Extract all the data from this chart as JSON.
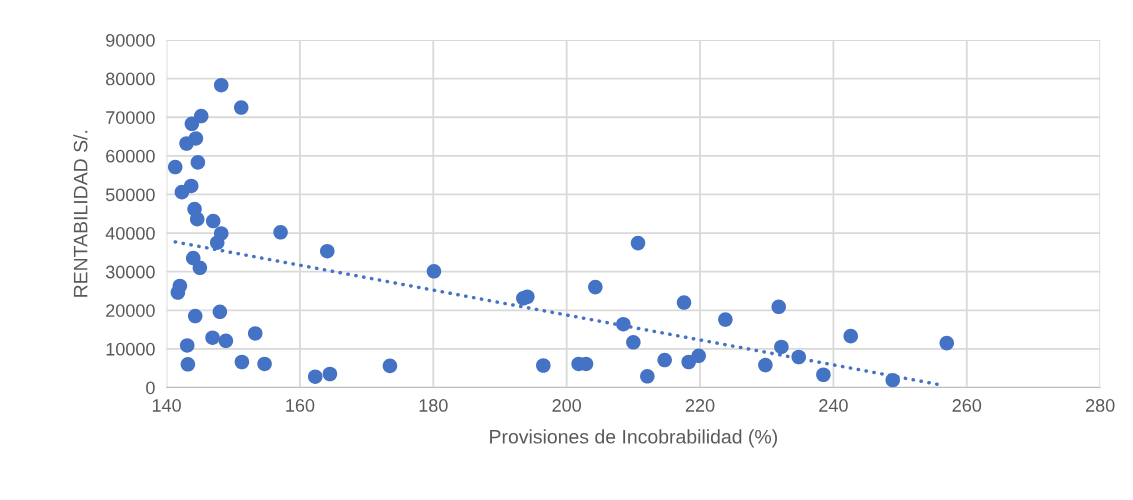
{
  "chart_data": {
    "type": "scatter",
    "xlabel": "Provisiones de Incobrabilidad (%)",
    "ylabel": "RENTABILIDAD S/.",
    "xlim": [
      140,
      280
    ],
    "xticks": [
      140,
      160,
      180,
      200,
      220,
      240,
      260,
      280
    ],
    "ylim": [
      0,
      90000
    ],
    "yticks": [
      0,
      10000,
      20000,
      30000,
      40000,
      50000,
      60000,
      70000,
      80000,
      90000
    ],
    "grid": true,
    "legend": false,
    "marker": "circle",
    "series": [
      {
        "color": "#4472c4",
        "x": [
          148.2,
          151.2,
          145.2,
          143.8,
          144.4,
          143.0,
          141.3,
          144.7,
          143.7,
          142.3,
          144.2,
          144.6,
          147.0,
          148.2,
          147.6,
          157.1,
          144.0,
          145.0,
          142.0,
          141.7,
          144.3,
          148.0,
          143.1,
          146.9,
          148.9,
          153.3,
          143.2,
          151.3,
          154.7,
          162.3,
          164.1,
          164.5,
          173.5,
          180.1,
          193.5,
          194.1,
          196.5,
          201.8,
          202.9,
          204.3,
          210.7,
          208.5,
          210.0,
          212.1,
          214.7,
          217.6,
          218.3,
          219.8,
          223.8,
          229.8,
          231.8,
          232.2,
          234.8,
          238.5,
          242.6,
          248.9,
          257.0
        ],
        "values": [
          78300,
          72500,
          70300,
          68300,
          64500,
          63200,
          57100,
          58300,
          52200,
          50600,
          46200,
          43600,
          43100,
          39900,
          37500,
          40200,
          33500,
          31000,
          26300,
          24600,
          18500,
          19600,
          10900,
          12900,
          12100,
          14000,
          6000,
          6600,
          6100,
          2800,
          35300,
          3500,
          5600,
          30100,
          23100,
          23500,
          5700,
          6100,
          6100,
          26000,
          37400,
          16400,
          11700,
          2900,
          7100,
          22000,
          6600,
          8200,
          17600,
          5800,
          20900,
          10500,
          7900,
          3300,
          13300,
          1900,
          11500
        ]
      },
      {
        "type": "line",
        "color": "#4472c4",
        "line_style": "dotted",
        "marker": "none",
        "x": [
          141.3,
          256.3
        ],
        "values": [
          37700,
          600
        ]
      }
    ]
  }
}
